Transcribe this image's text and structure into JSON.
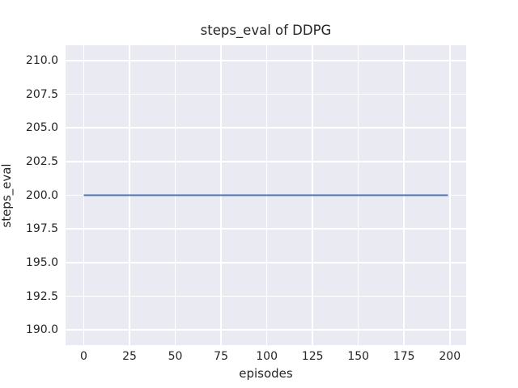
{
  "chart_data": {
    "type": "line",
    "title": "steps_eval of DDPG",
    "xlabel": "episodes",
    "ylabel": "steps_eval",
    "xlim": [
      -9.95,
      208.95
    ],
    "ylim": [
      188.87,
      211.13
    ],
    "x_tick_labels": [
      "0",
      "25",
      "50",
      "75",
      "100",
      "125",
      "150",
      "175",
      "200"
    ],
    "y_tick_labels": [
      "190.0",
      "192.5",
      "195.0",
      "197.5",
      "200.0",
      "202.5",
      "205.0",
      "207.5",
      "210.0"
    ],
    "grid": true,
    "legend": "none",
    "series": [
      {
        "name": "steps_eval",
        "color": "#4c72b0",
        "line_width": 2,
        "x": [
          0,
          199
        ],
        "y": [
          200,
          200
        ]
      }
    ],
    "style": {
      "figure_background": "#ffffff",
      "axes_background": "#eaeaf2",
      "grid_color": "#ffffff",
      "text_color": "#262626"
    }
  }
}
